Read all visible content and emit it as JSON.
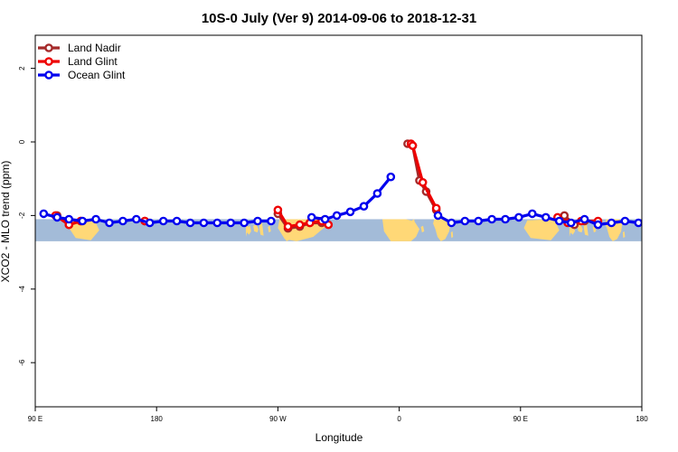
{
  "chart_data": {
    "type": "line",
    "title": "10S-0 July (Ver 9)   2014-09-06 to 2018-12-31",
    "xlabel": "Longitude",
    "ylabel": "XCO2 - MLO trend (ppm)",
    "xlim": [
      90,
      450
    ],
    "ylim": [
      -7.2,
      2.9
    ],
    "x_ticks": [
      {
        "value": 90,
        "label": "90 E"
      },
      {
        "value": 162,
        "label": "180"
      },
      {
        "value": 234,
        "label": "90 W"
      },
      {
        "value": 306,
        "label": "0"
      },
      {
        "value": 378,
        "label": "90 E"
      },
      {
        "value": 450,
        "label": "180"
      }
    ],
    "y_ticks": [
      -6,
      -4,
      -2,
      0,
      2
    ],
    "map_band": {
      "y_top": -2.1,
      "y_bottom": -2.7,
      "ocean_color": "#a3bbd8",
      "land_color": "#ffd877"
    },
    "series": [
      {
        "name": "Land Nadir",
        "color": "#a52a2a",
        "x": [
          103,
          110,
          117,
          155,
          234,
          240,
          247,
          253,
          260,
          311,
          314,
          318,
          322,
          328,
          404,
          410,
          416
        ],
        "y": [
          -2.0,
          -2.25,
          -2.15,
          -2.15,
          -1.95,
          -2.35,
          -2.3,
          -2.2,
          -2.2,
          -0.05,
          -0.1,
          -1.05,
          -1.35,
          -1.85,
          -2.0,
          -2.25,
          -2.15
        ]
      },
      {
        "name": "Land Glint",
        "color": "#ee0000",
        "x": [
          102,
          110,
          117,
          155,
          234,
          240,
          247,
          253,
          260,
          264,
          313,
          314,
          320,
          328,
          400,
          406,
          414,
          424
        ],
        "y": [
          -2.0,
          -2.25,
          -2.15,
          -2.15,
          -1.85,
          -2.3,
          -2.25,
          -2.2,
          -2.15,
          -2.25,
          -0.05,
          -0.1,
          -1.1,
          -1.8,
          -2.05,
          -2.2,
          -2.15,
          -2.15
        ]
      },
      {
        "name": "Ocean Glint",
        "color": "#0000ee",
        "x": [
          95,
          103,
          110,
          118,
          126,
          134,
          142,
          150,
          158,
          166,
          174,
          182,
          190,
          198,
          206,
          214,
          222,
          230,
          254,
          262,
          269,
          277,
          285,
          293,
          301,
          329,
          337,
          345,
          353,
          361,
          369,
          377,
          385,
          393,
          401,
          408,
          416,
          424,
          432,
          440,
          448
        ],
        "y": [
          -1.95,
          -2.05,
          -2.1,
          -2.15,
          -2.1,
          -2.2,
          -2.15,
          -2.1,
          -2.2,
          -2.15,
          -2.15,
          -2.2,
          -2.2,
          -2.2,
          -2.2,
          -2.2,
          -2.15,
          -2.15,
          -2.05,
          -2.1,
          -2.0,
          -1.9,
          -1.75,
          -1.4,
          -0.95,
          -2.0,
          -2.2,
          -2.15,
          -2.15,
          -2.1,
          -2.1,
          -2.05,
          -1.95,
          -2.05,
          -2.15,
          -2.2,
          -2.1,
          -2.25,
          -2.2,
          -2.15,
          -2.2
        ]
      }
    ],
    "legend": {
      "placement": "top-left"
    }
  }
}
